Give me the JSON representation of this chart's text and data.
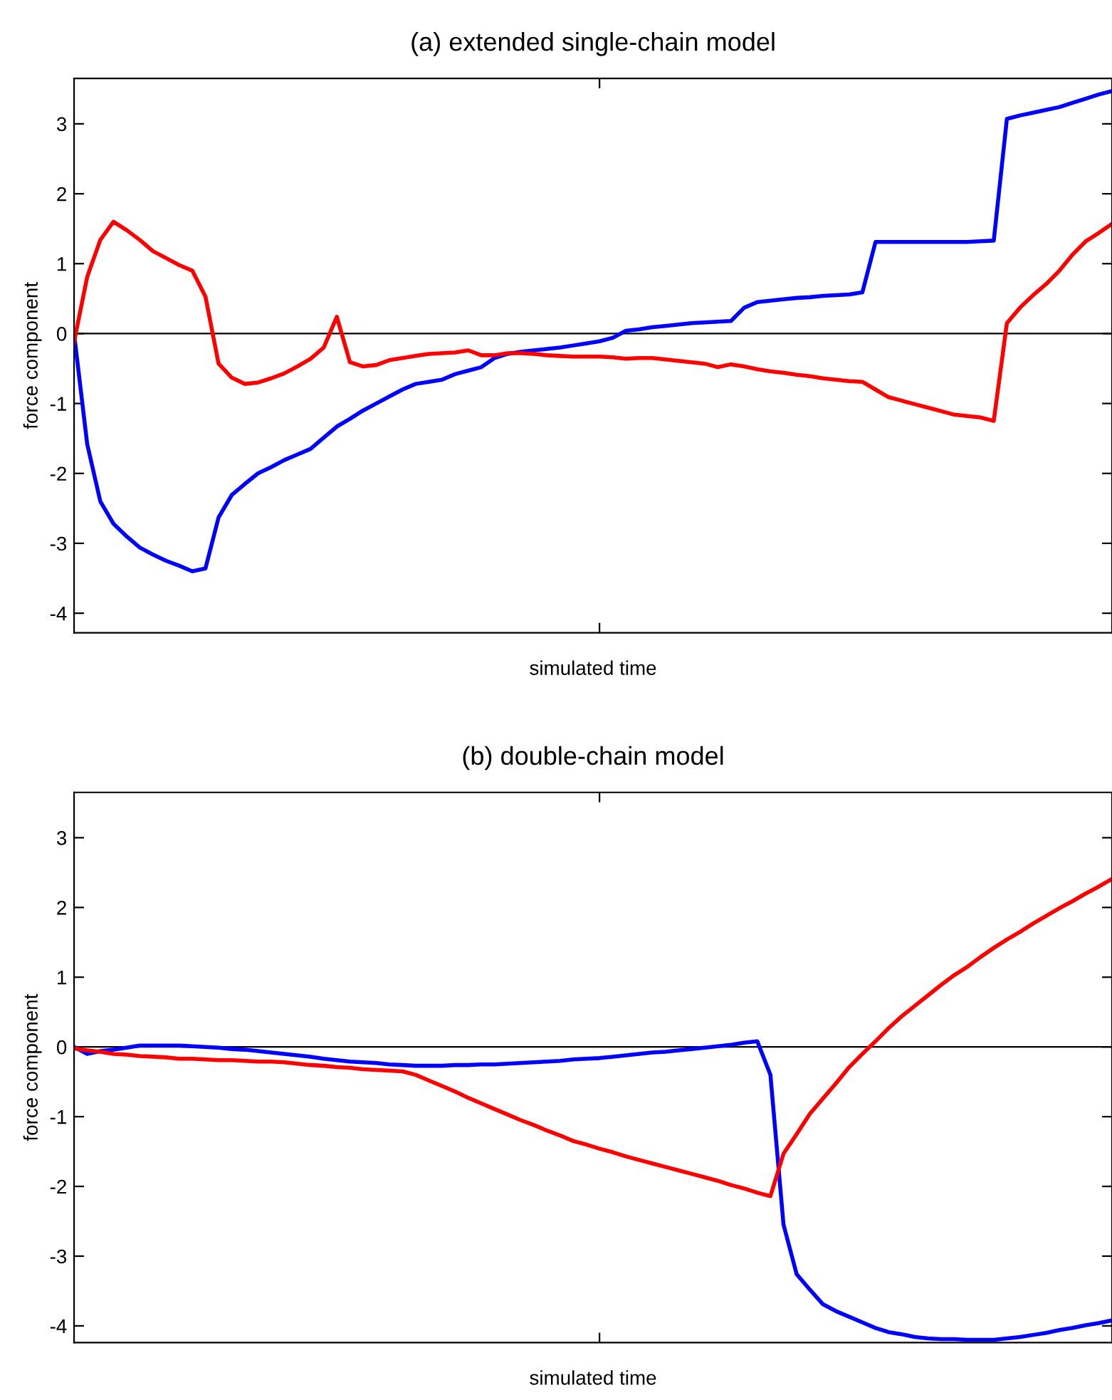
{
  "chart_data": [
    {
      "type": "line",
      "title": "(a) extended single-chain model",
      "xlabel": "simulated time",
      "ylabel": "force component",
      "categories": [
        null,
        null,
        null,
        null,
        null,
        null,
        null,
        null,
        null,
        null,
        null,
        null,
        null,
        null,
        null,
        null,
        null,
        null,
        null,
        null,
        null,
        null,
        null,
        null,
        null,
        null,
        null,
        null,
        null,
        null,
        null,
        null,
        null,
        null,
        null,
        null,
        null,
        null,
        null,
        null,
        null,
        null,
        null,
        null,
        null,
        null,
        null,
        null,
        null,
        null,
        null,
        null,
        null,
        null,
        null,
        null,
        null,
        null,
        null,
        null,
        null,
        null,
        null,
        null,
        null,
        null,
        null,
        null,
        null,
        null,
        null,
        null,
        null,
        null,
        null,
        null,
        null,
        null,
        null,
        null
      ],
      "ylim": [
        -4.28,
        3.65
      ],
      "yticks": [
        -4,
        -3,
        -2,
        -1,
        0,
        1,
        2,
        3
      ],
      "tick_labels": "y",
      "ref_lines": [
        {
          "axis": "y",
          "value": 0,
          "color": "#000000"
        }
      ],
      "series": [
        {
          "color": "#0000ff",
          "values": [
            0,
            -1.58,
            -2.4,
            -2.72,
            -2.9,
            -3.06,
            -3.16,
            -3.25,
            -3.32,
            -3.4,
            -3.36,
            -2.63,
            -2.31,
            -2.15,
            -2.0,
            -1.91,
            -1.81,
            -1.73,
            -1.65,
            -1.49,
            -1.33,
            -1.22,
            -1.1,
            -1.0,
            -0.9,
            -0.8,
            -0.72,
            -0.69,
            -0.66,
            -0.58,
            -0.53,
            -0.48,
            -0.35,
            -0.29,
            -0.26,
            -0.24,
            -0.22,
            -0.2,
            -0.17,
            -0.14,
            -0.11,
            -0.06,
            0.04,
            0.06,
            0.09,
            0.11,
            0.13,
            0.15,
            0.16,
            0.17,
            0.18,
            0.37,
            0.45,
            0.47,
            0.49,
            0.51,
            0.52,
            0.54,
            0.55,
            0.56,
            0.59,
            1.31,
            1.31,
            1.31,
            1.31,
            1.31,
            1.31,
            1.31,
            1.31,
            1.32,
            1.33,
            3.07,
            3.12,
            3.16,
            3.2,
            3.24,
            3.3,
            3.36,
            3.42,
            3.47
          ]
        },
        {
          "color": "#ff0000",
          "values": [
            -0.12,
            0.81,
            1.34,
            1.6,
            1.48,
            1.34,
            1.18,
            1.08,
            0.98,
            0.9,
            0.53,
            -0.43,
            -0.63,
            -0.72,
            -0.7,
            -0.64,
            -0.57,
            -0.47,
            -0.36,
            -0.2,
            0.24,
            -0.41,
            -0.47,
            -0.45,
            -0.38,
            -0.35,
            -0.32,
            -0.29,
            -0.28,
            -0.27,
            -0.24,
            -0.31,
            -0.31,
            -0.28,
            -0.28,
            -0.29,
            -0.31,
            -0.32,
            -0.33,
            -0.33,
            -0.33,
            -0.34,
            -0.36,
            -0.35,
            -0.35,
            -0.37,
            -0.39,
            -0.41,
            -0.43,
            -0.48,
            -0.44,
            -0.47,
            -0.51,
            -0.54,
            -0.56,
            -0.59,
            -0.61,
            -0.64,
            -0.66,
            -0.68,
            -0.69,
            -0.8,
            -0.91,
            -0.96,
            -1.01,
            -1.06,
            -1.11,
            -1.16,
            -1.18,
            -1.2,
            -1.25,
            0.15,
            0.37,
            0.55,
            0.71,
            0.9,
            1.13,
            1.32,
            1.44,
            1.57
          ]
        }
      ]
    },
    {
      "type": "line",
      "title": "(b) double-chain model",
      "xlabel": "simulated time",
      "ylabel": "force component",
      "categories": [
        null,
        null,
        null,
        null,
        null,
        null,
        null,
        null,
        null,
        null,
        null,
        null,
        null,
        null,
        null,
        null,
        null,
        null,
        null,
        null,
        null,
        null,
        null,
        null,
        null,
        null,
        null,
        null,
        null,
        null,
        null,
        null,
        null,
        null,
        null,
        null,
        null,
        null,
        null,
        null,
        null,
        null,
        null,
        null,
        null,
        null,
        null,
        null,
        null,
        null,
        null,
        null,
        null,
        null,
        null,
        null,
        null,
        null,
        null,
        null,
        null,
        null,
        null,
        null,
        null,
        null,
        null,
        null,
        null,
        null,
        null,
        null,
        null,
        null,
        null,
        null,
        null,
        null,
        null,
        null
      ],
      "ylim": [
        -4.24,
        3.65
      ],
      "yticks": [
        -4,
        -3,
        -2,
        -1,
        0,
        1,
        2,
        3
      ],
      "tick_labels": "y",
      "ref_lines": [
        {
          "axis": "y",
          "value": 0,
          "color": "#000000"
        }
      ],
      "series": [
        {
          "color": "#0000ff",
          "values": [
            0,
            -0.1,
            -0.06,
            -0.04,
            -0.01,
            0.02,
            0.02,
            0.02,
            0.02,
            0.01,
            0,
            -0.01,
            -0.03,
            -0.04,
            -0.06,
            -0.08,
            -0.1,
            -0.12,
            -0.14,
            -0.17,
            -0.19,
            -0.21,
            -0.22,
            -0.23,
            -0.25,
            -0.26,
            -0.27,
            -0.27,
            -0.27,
            -0.26,
            -0.26,
            -0.25,
            -0.25,
            -0.24,
            -0.23,
            -0.22,
            -0.21,
            -0.2,
            -0.18,
            -0.17,
            -0.16,
            -0.14,
            -0.12,
            -0.1,
            -0.08,
            -0.07,
            -0.05,
            -0.03,
            -0.01,
            0.01,
            0.03,
            0.06,
            0.08,
            -0.4,
            -2.55,
            -3.26,
            -3.48,
            -3.69,
            -3.79,
            -3.87,
            -3.95,
            -4.03,
            -4.09,
            -4.12,
            -4.16,
            -4.18,
            -4.19,
            -4.19,
            -4.2,
            -4.2,
            -4.2,
            -4.18,
            -4.16,
            -4.13,
            -4.1,
            -4.06,
            -4.03,
            -3.99,
            -3.96,
            -3.92
          ]
        },
        {
          "color": "#ff0000",
          "values": [
            -0.02,
            -0.05,
            -0.07,
            -0.1,
            -0.11,
            -0.13,
            -0.14,
            -0.15,
            -0.17,
            -0.17,
            -0.18,
            -0.19,
            -0.19,
            -0.2,
            -0.21,
            -0.21,
            -0.22,
            -0.24,
            -0.26,
            -0.27,
            -0.29,
            -0.3,
            -0.32,
            -0.33,
            -0.34,
            -0.35,
            -0.4,
            -0.48,
            -0.56,
            -0.64,
            -0.73,
            -0.81,
            -0.89,
            -0.97,
            -1.05,
            -1.12,
            -1.2,
            -1.27,
            -1.35,
            -1.4,
            -1.46,
            -1.51,
            -1.57,
            -1.62,
            -1.67,
            -1.72,
            -1.77,
            -1.82,
            -1.87,
            -1.92,
            -1.98,
            -2.03,
            -2.09,
            -2.14,
            -1.53,
            -1.25,
            -0.96,
            -0.74,
            -0.52,
            -0.29,
            -0.1,
            0.08,
            0.27,
            0.44,
            0.59,
            0.74,
            0.89,
            1.03,
            1.15,
            1.29,
            1.42,
            1.54,
            1.65,
            1.77,
            1.88,
            1.99,
            2.09,
            2.2,
            2.3,
            2.41
          ]
        }
      ]
    }
  ]
}
